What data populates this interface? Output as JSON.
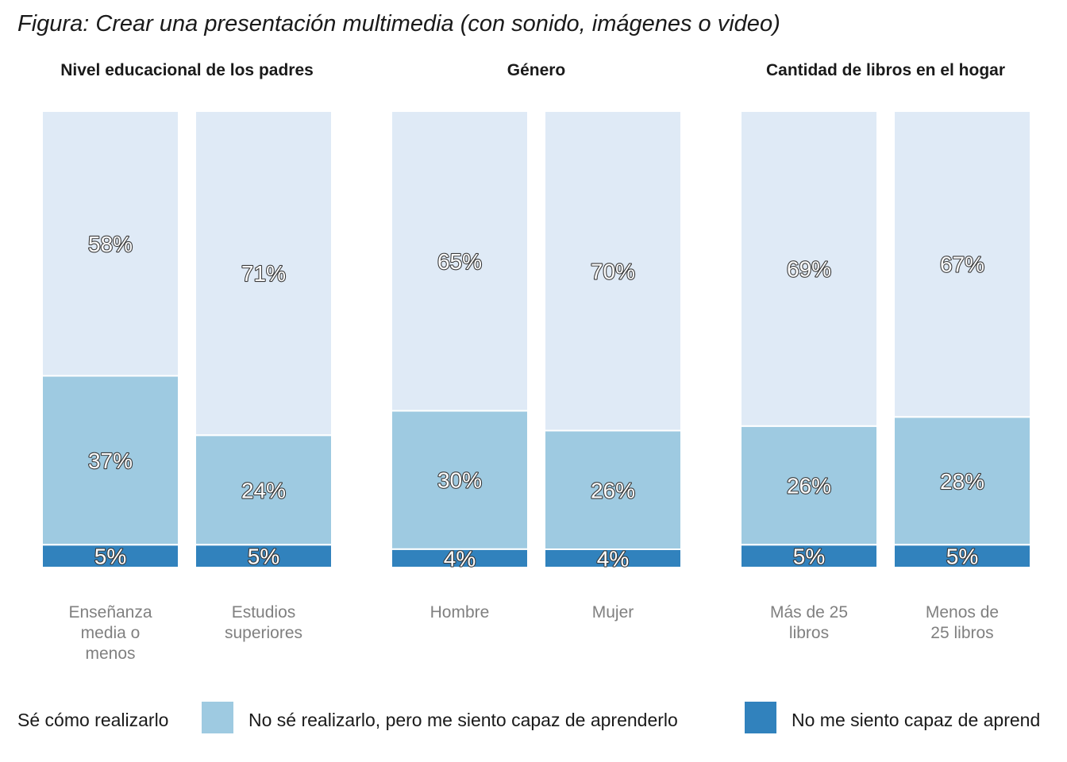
{
  "chart_data": {
    "type": "bar",
    "stacked": true,
    "percent": true,
    "title": "Figura: Crear una presentación multimedia (con sonido, imágenes o video)",
    "legend_position": "bottom",
    "series": [
      {
        "name": "Sé cómo realizarlo",
        "color": "#dfeaf6"
      },
      {
        "name": "No sé realizarlo, pero me siento capaz de aprenderlo",
        "color": "#9ecae1"
      },
      {
        "name": "No me siento capaz de aprenderlo",
        "color": "#3182bd"
      }
    ],
    "legend_labels": [
      "Sé cómo realizarlo",
      "No sé realizarlo, pero me siento capaz de aprenderlo",
      "No me siento capaz de aprend"
    ],
    "panels": [
      {
        "title": "Nivel educacional de los padres",
        "categories": [
          {
            "label": [
              "Enseñanza",
              "media o",
              "menos"
            ],
            "values": [
              58,
              37,
              5
            ]
          },
          {
            "label": [
              "Estudios",
              "superiores"
            ],
            "values": [
              71,
              24,
              5
            ]
          }
        ]
      },
      {
        "title": "Género",
        "categories": [
          {
            "label": [
              "Hombre"
            ],
            "values": [
              65,
              30,
              4
            ]
          },
          {
            "label": [
              "Mujer"
            ],
            "values": [
              70,
              26,
              4
            ]
          }
        ]
      },
      {
        "title": "Cantidad de libros en el hogar",
        "categories": [
          {
            "label": [
              "Más de 25",
              "libros"
            ],
            "values": [
              69,
              26,
              5
            ]
          },
          {
            "label": [
              "Menos de",
              "25 libros"
            ],
            "values": [
              67,
              28,
              5
            ]
          }
        ]
      }
    ]
  }
}
